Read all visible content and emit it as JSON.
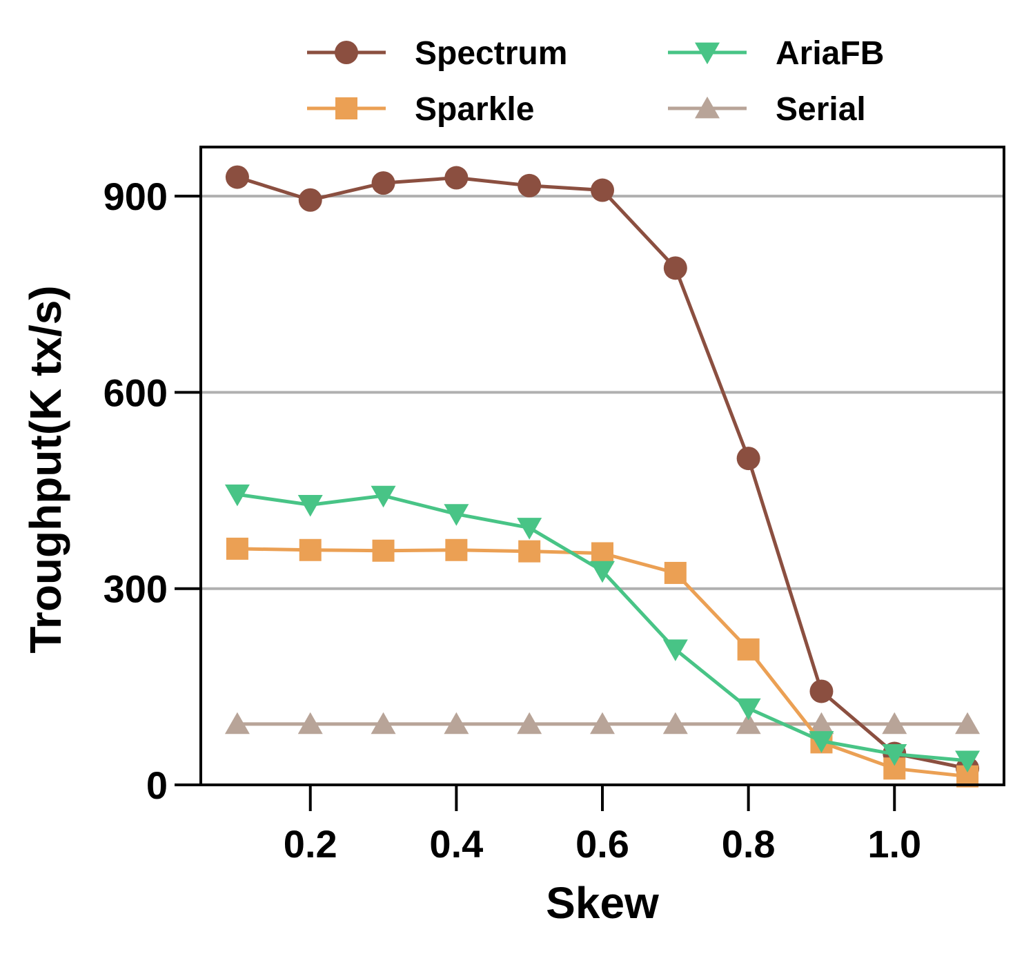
{
  "chart_data": {
    "type": "line",
    "xlabel": "Skew",
    "ylabel": "Troughput(K tx/s)",
    "xlim": [
      0.05,
      1.15
    ],
    "ylim": [
      0,
      975
    ],
    "xticks": [
      0.2,
      0.4,
      0.6,
      0.8,
      1.0
    ],
    "xtick_labels": [
      "0.2",
      "0.4",
      "0.6",
      "0.8",
      "1.0"
    ],
    "yticks": [
      0,
      300,
      600,
      900
    ],
    "ytick_labels": [
      "0",
      "300",
      "600",
      "900"
    ],
    "grid": "horizontal",
    "legend_position": "top, above plot, 2 columns",
    "x": [
      0.1,
      0.2,
      0.3,
      0.4,
      0.5,
      0.6,
      0.7,
      0.8,
      0.9,
      1.0,
      1.1
    ],
    "series": [
      {
        "name": "Spectrum",
        "color": "#8B4F40",
        "marker": "circle",
        "values": [
          929,
          894,
          920,
          928,
          916,
          909,
          790,
          499,
          143,
          48,
          25
        ]
      },
      {
        "name": "Sparkle",
        "color": "#EBA054",
        "marker": "square",
        "values": [
          361,
          359,
          358,
          359,
          357,
          354,
          324,
          207,
          65,
          25,
          13
        ]
      },
      {
        "name": "AriaFB",
        "color": "#48C486",
        "marker": "triangle-down",
        "values": [
          444,
          428,
          442,
          414,
          393,
          327,
          207,
          117,
          67,
          47,
          37
        ]
      },
      {
        "name": "Serial",
        "color": "#B8A498",
        "marker": "triangle-up",
        "values": [
          93,
          93,
          93,
          93,
          93,
          93,
          93,
          93,
          93,
          93,
          93
        ]
      }
    ]
  }
}
